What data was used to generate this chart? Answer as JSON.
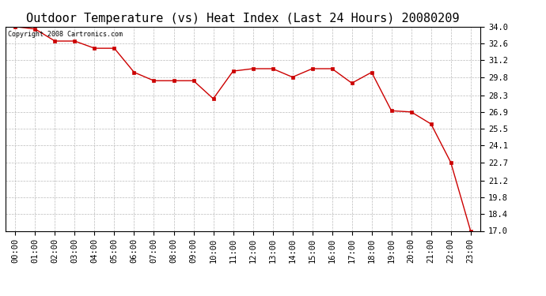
{
  "title": "Outdoor Temperature (vs) Heat Index (Last 24 Hours) 20080209",
  "copyright_text": "Copyright 2008 Cartronics.com",
  "x_labels": [
    "00:00",
    "01:00",
    "02:00",
    "03:00",
    "04:00",
    "05:00",
    "06:00",
    "07:00",
    "08:00",
    "09:00",
    "10:00",
    "11:00",
    "12:00",
    "13:00",
    "14:00",
    "15:00",
    "16:00",
    "17:00",
    "18:00",
    "19:00",
    "20:00",
    "21:00",
    "22:00",
    "23:00"
  ],
  "y_values": [
    34.0,
    33.8,
    32.8,
    32.8,
    32.2,
    32.2,
    30.2,
    29.5,
    29.5,
    29.5,
    28.0,
    30.3,
    30.5,
    30.5,
    29.8,
    30.5,
    30.5,
    29.3,
    30.2,
    27.0,
    26.9,
    25.9,
    22.7,
    17.0
  ],
  "line_color": "#cc0000",
  "marker_color": "#cc0000",
  "bg_color": "#ffffff",
  "grid_color": "#bbbbbb",
  "y_ticks": [
    17.0,
    18.4,
    19.8,
    21.2,
    22.7,
    24.1,
    25.5,
    26.9,
    28.3,
    29.8,
    31.2,
    32.6,
    34.0
  ],
  "y_min": 17.0,
  "y_max": 34.0,
  "title_fontsize": 11,
  "copyright_fontsize": 6,
  "tick_fontsize": 7.5
}
